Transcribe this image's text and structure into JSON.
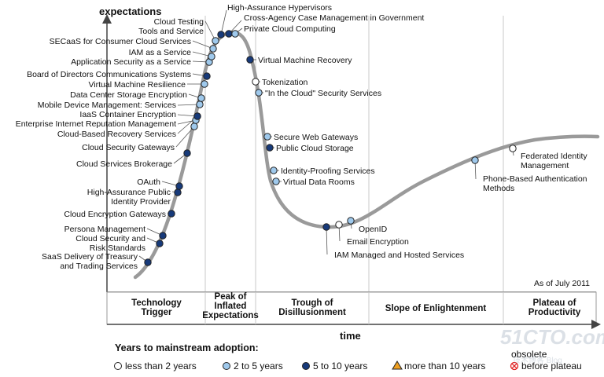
{
  "chart_data": {
    "type": "scatter",
    "title": "",
    "ylabel": "expectations",
    "xlabel": "time",
    "note": "As of July 2011",
    "phases": [
      [
        "Technology",
        "Trigger"
      ],
      [
        "Peak of",
        "Inflated",
        "Expectations"
      ],
      [
        "Trough of",
        "Disillusionment"
      ],
      [
        "Slope of Enlightenment"
      ],
      [
        "Plateau of",
        "Productivity"
      ]
    ],
    "legend": {
      "title": "Years to mainstream adoption:",
      "items": [
        {
          "key": "lt2",
          "label": "less than 2 years",
          "shape": "circle",
          "fill": "#ffffff"
        },
        {
          "key": "2to5",
          "label": "2 to 5 years",
          "shape": "circle",
          "fill": "#9fc9ec"
        },
        {
          "key": "5to10",
          "label": "5 to 10 years",
          "shape": "circle",
          "fill": "#173a7a"
        },
        {
          "key": "gt10",
          "label": "more than 10 years",
          "shape": "triangle",
          "fill": "#f0a020"
        },
        {
          "key": "obs",
          "label": "before plateau",
          "label_top": "obsolete",
          "shape": "xcircle",
          "fill": "#e02020"
        }
      ]
    },
    "points": [
      {
        "name": "SaaS Delivery of Treasury|and Trading Services",
        "cat": "5to10"
      },
      {
        "name": "Persona Management",
        "cat": "5to10"
      },
      {
        "name": "Cloud Security and|Risk Standards",
        "cat": "5to10"
      },
      {
        "name": "Cloud Encryption Gateways",
        "cat": "5to10"
      },
      {
        "name": "High-Assurance Public|Identity Provider",
        "cat": "5to10"
      },
      {
        "name": "OAuth",
        "cat": "5to10"
      },
      {
        "name": "Cloud Services Brokerage",
        "cat": "5to10"
      },
      {
        "name": "Cloud Security Gateways",
        "cat": "2to5"
      },
      {
        "name": "Cloud-Based Recovery Services",
        "cat": "2to5"
      },
      {
        "name": "Enterprise Internet Reputation Management",
        "cat": "2to5"
      },
      {
        "name": "IaaS Container Encryption",
        "cat": "5to10"
      },
      {
        "name": "Mobile Device Management: Services",
        "cat": "2to5"
      },
      {
        "name": "Data Center Storage Encryption",
        "cat": "2to5"
      },
      {
        "name": "Virtual Machine Resilience",
        "cat": "2to5"
      },
      {
        "name": "Board of Directors Communications Systems",
        "cat": "5to10"
      },
      {
        "name": "Application Security as a Service",
        "cat": "2to5"
      },
      {
        "name": "IAM as a Service",
        "cat": "2to5"
      },
      {
        "name": "SECaaS for Consumer Cloud Services",
        "cat": "2to5"
      },
      {
        "name": "Cloud Testing|Tools and Service",
        "cat": "2to5"
      },
      {
        "name": "High-Assurance Hypervisors",
        "cat": "5to10"
      },
      {
        "name": "Cross-Agency Case Management in Government",
        "cat": "5to10"
      },
      {
        "name": "Private Cloud Computing",
        "cat": "2to5"
      },
      {
        "name": "Virtual Machine Recovery",
        "cat": "5to10"
      },
      {
        "name": "Tokenization",
        "cat": "lt2"
      },
      {
        "name": "\"In the Cloud\" Security Services",
        "cat": "2to5"
      },
      {
        "name": "Secure Web Gateways",
        "cat": "2to5"
      },
      {
        "name": "Public Cloud Storage",
        "cat": "5to10"
      },
      {
        "name": "Identity-Proofing Services",
        "cat": "2to5"
      },
      {
        "name": "Virtual Data Rooms",
        "cat": "2to5"
      },
      {
        "name": "IAM Managed and Hosted Services",
        "cat": "5to10"
      },
      {
        "name": "Email Encryption",
        "cat": "lt2"
      },
      {
        "name": "OpenID",
        "cat": "2to5"
      },
      {
        "name": "Phone-Based Authentication|Methods",
        "cat": "2to5"
      },
      {
        "name": "Federated Identity|Management",
        "cat": "lt2"
      }
    ]
  }
}
